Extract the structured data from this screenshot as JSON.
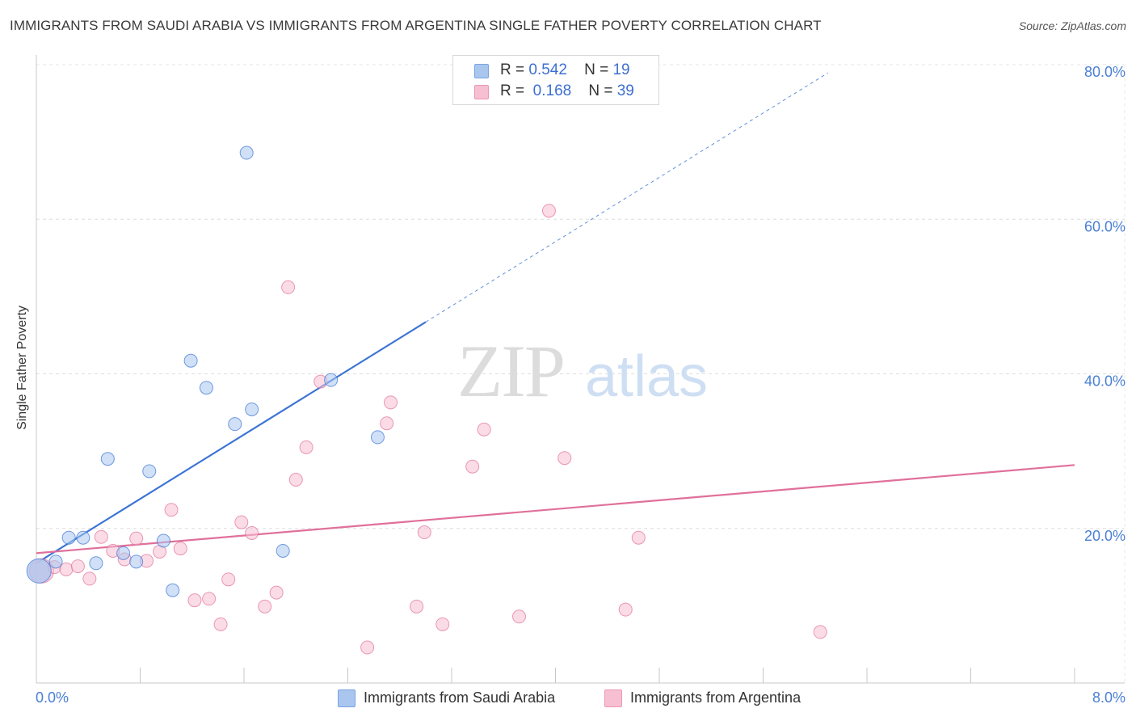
{
  "title": "IMMIGRANTS FROM SAUDI ARABIA VS IMMIGRANTS FROM ARGENTINA SINGLE FATHER POVERTY CORRELATION CHART",
  "source": "Source: ZipAtlas.com",
  "watermark": {
    "zip": "ZIP",
    "atlas": "atlas"
  },
  "legend_top": {
    "rows": [
      {
        "r_label": "R =",
        "r_value": "0.542",
        "n_label": "N =",
        "n_value": "19"
      },
      {
        "r_label": "R =",
        "r_value": "0.168",
        "n_label": "N =",
        "n_value": "39"
      }
    ]
  },
  "chart_data": {
    "type": "scatter",
    "title": "IMMIGRANTS FROM SAUDI ARABIA VS IMMIGRANTS FROM ARGENTINA SINGLE FATHER POVERTY CORRELATION CHART",
    "xlabel": "",
    "ylabel": "Single Father Poverty",
    "xlim": [
      0,
      8
    ],
    "ylim": [
      0,
      80
    ],
    "x_tick_labels": [
      "0.0%",
      "8.0%"
    ],
    "y_tick_labels": [
      {
        "value": 20,
        "label": "20.0%"
      },
      {
        "value": 40,
        "label": "40.0%"
      },
      {
        "value": 60,
        "label": "60.0%"
      },
      {
        "value": 80,
        "label": "80.0%"
      }
    ],
    "grid": true,
    "series": [
      {
        "name": "Immigrants from Saudi Arabia",
        "color": "#3b74d4",
        "fill": "#a9c6ef",
        "r": 0.542,
        "n": 19,
        "trend": {
          "x0": 0.0,
          "y0": 15.5,
          "x1": 3.0,
          "y1": 46.7,
          "dashed_to_x": 6.1
        },
        "points": [
          {
            "x": 0.02,
            "y": 14.5,
            "big": true
          },
          {
            "x": 0.15,
            "y": 15.7
          },
          {
            "x": 0.25,
            "y": 18.8
          },
          {
            "x": 0.36,
            "y": 18.8
          },
          {
            "x": 0.46,
            "y": 15.5
          },
          {
            "x": 0.55,
            "y": 29.0
          },
          {
            "x": 0.67,
            "y": 16.8
          },
          {
            "x": 0.77,
            "y": 15.7
          },
          {
            "x": 0.87,
            "y": 27.4
          },
          {
            "x": 0.98,
            "y": 18.4
          },
          {
            "x": 1.05,
            "y": 12.0
          },
          {
            "x": 1.19,
            "y": 41.7
          },
          {
            "x": 1.31,
            "y": 38.2
          },
          {
            "x": 1.53,
            "y": 33.5
          },
          {
            "x": 1.62,
            "y": 68.6
          },
          {
            "x": 1.66,
            "y": 35.4
          },
          {
            "x": 1.9,
            "y": 17.1
          },
          {
            "x": 2.27,
            "y": 39.2
          },
          {
            "x": 2.63,
            "y": 31.8
          }
        ]
      },
      {
        "name": "Immigrants from Argentina",
        "color": "#e0709a",
        "fill": "#f7bfd2",
        "r": 0.168,
        "n": 39,
        "trend": {
          "x0": 0.0,
          "y0": 16.8,
          "x1": 8.0,
          "y1": 28.2
        },
        "points": [
          {
            "x": 0.04,
            "y": 14.5,
            "big": true
          },
          {
            "x": 0.14,
            "y": 15.0
          },
          {
            "x": 0.23,
            "y": 14.7
          },
          {
            "x": 0.32,
            "y": 15.1
          },
          {
            "x": 0.41,
            "y": 13.5
          },
          {
            "x": 0.5,
            "y": 18.9
          },
          {
            "x": 0.59,
            "y": 17.1
          },
          {
            "x": 0.68,
            "y": 16.0
          },
          {
            "x": 0.77,
            "y": 18.7
          },
          {
            "x": 0.85,
            "y": 15.8
          },
          {
            "x": 0.95,
            "y": 17.0
          },
          {
            "x": 1.04,
            "y": 22.4
          },
          {
            "x": 1.11,
            "y": 17.4
          },
          {
            "x": 1.22,
            "y": 10.7
          },
          {
            "x": 1.33,
            "y": 10.9
          },
          {
            "x": 1.42,
            "y": 7.6
          },
          {
            "x": 1.48,
            "y": 13.4
          },
          {
            "x": 1.58,
            "y": 20.8
          },
          {
            "x": 1.66,
            "y": 19.4
          },
          {
            "x": 1.76,
            "y": 9.9
          },
          {
            "x": 1.85,
            "y": 11.7
          },
          {
            "x": 1.94,
            "y": 51.2
          },
          {
            "x": 2.0,
            "y": 26.3
          },
          {
            "x": 2.08,
            "y": 30.5
          },
          {
            "x": 2.19,
            "y": 39.0
          },
          {
            "x": 2.55,
            "y": 4.6
          },
          {
            "x": 2.7,
            "y": 33.6
          },
          {
            "x": 2.73,
            "y": 36.3
          },
          {
            "x": 2.93,
            "y": 9.9
          },
          {
            "x": 2.99,
            "y": 19.5
          },
          {
            "x": 3.13,
            "y": 7.6
          },
          {
            "x": 3.36,
            "y": 28.0
          },
          {
            "x": 3.45,
            "y": 32.8
          },
          {
            "x": 3.72,
            "y": 8.6
          },
          {
            "x": 3.95,
            "y": 61.1
          },
          {
            "x": 4.07,
            "y": 29.1
          },
          {
            "x": 4.54,
            "y": 9.5
          },
          {
            "x": 4.64,
            "y": 18.8
          },
          {
            "x": 6.04,
            "y": 6.6
          }
        ]
      }
    ],
    "legend": "bottom-center"
  }
}
